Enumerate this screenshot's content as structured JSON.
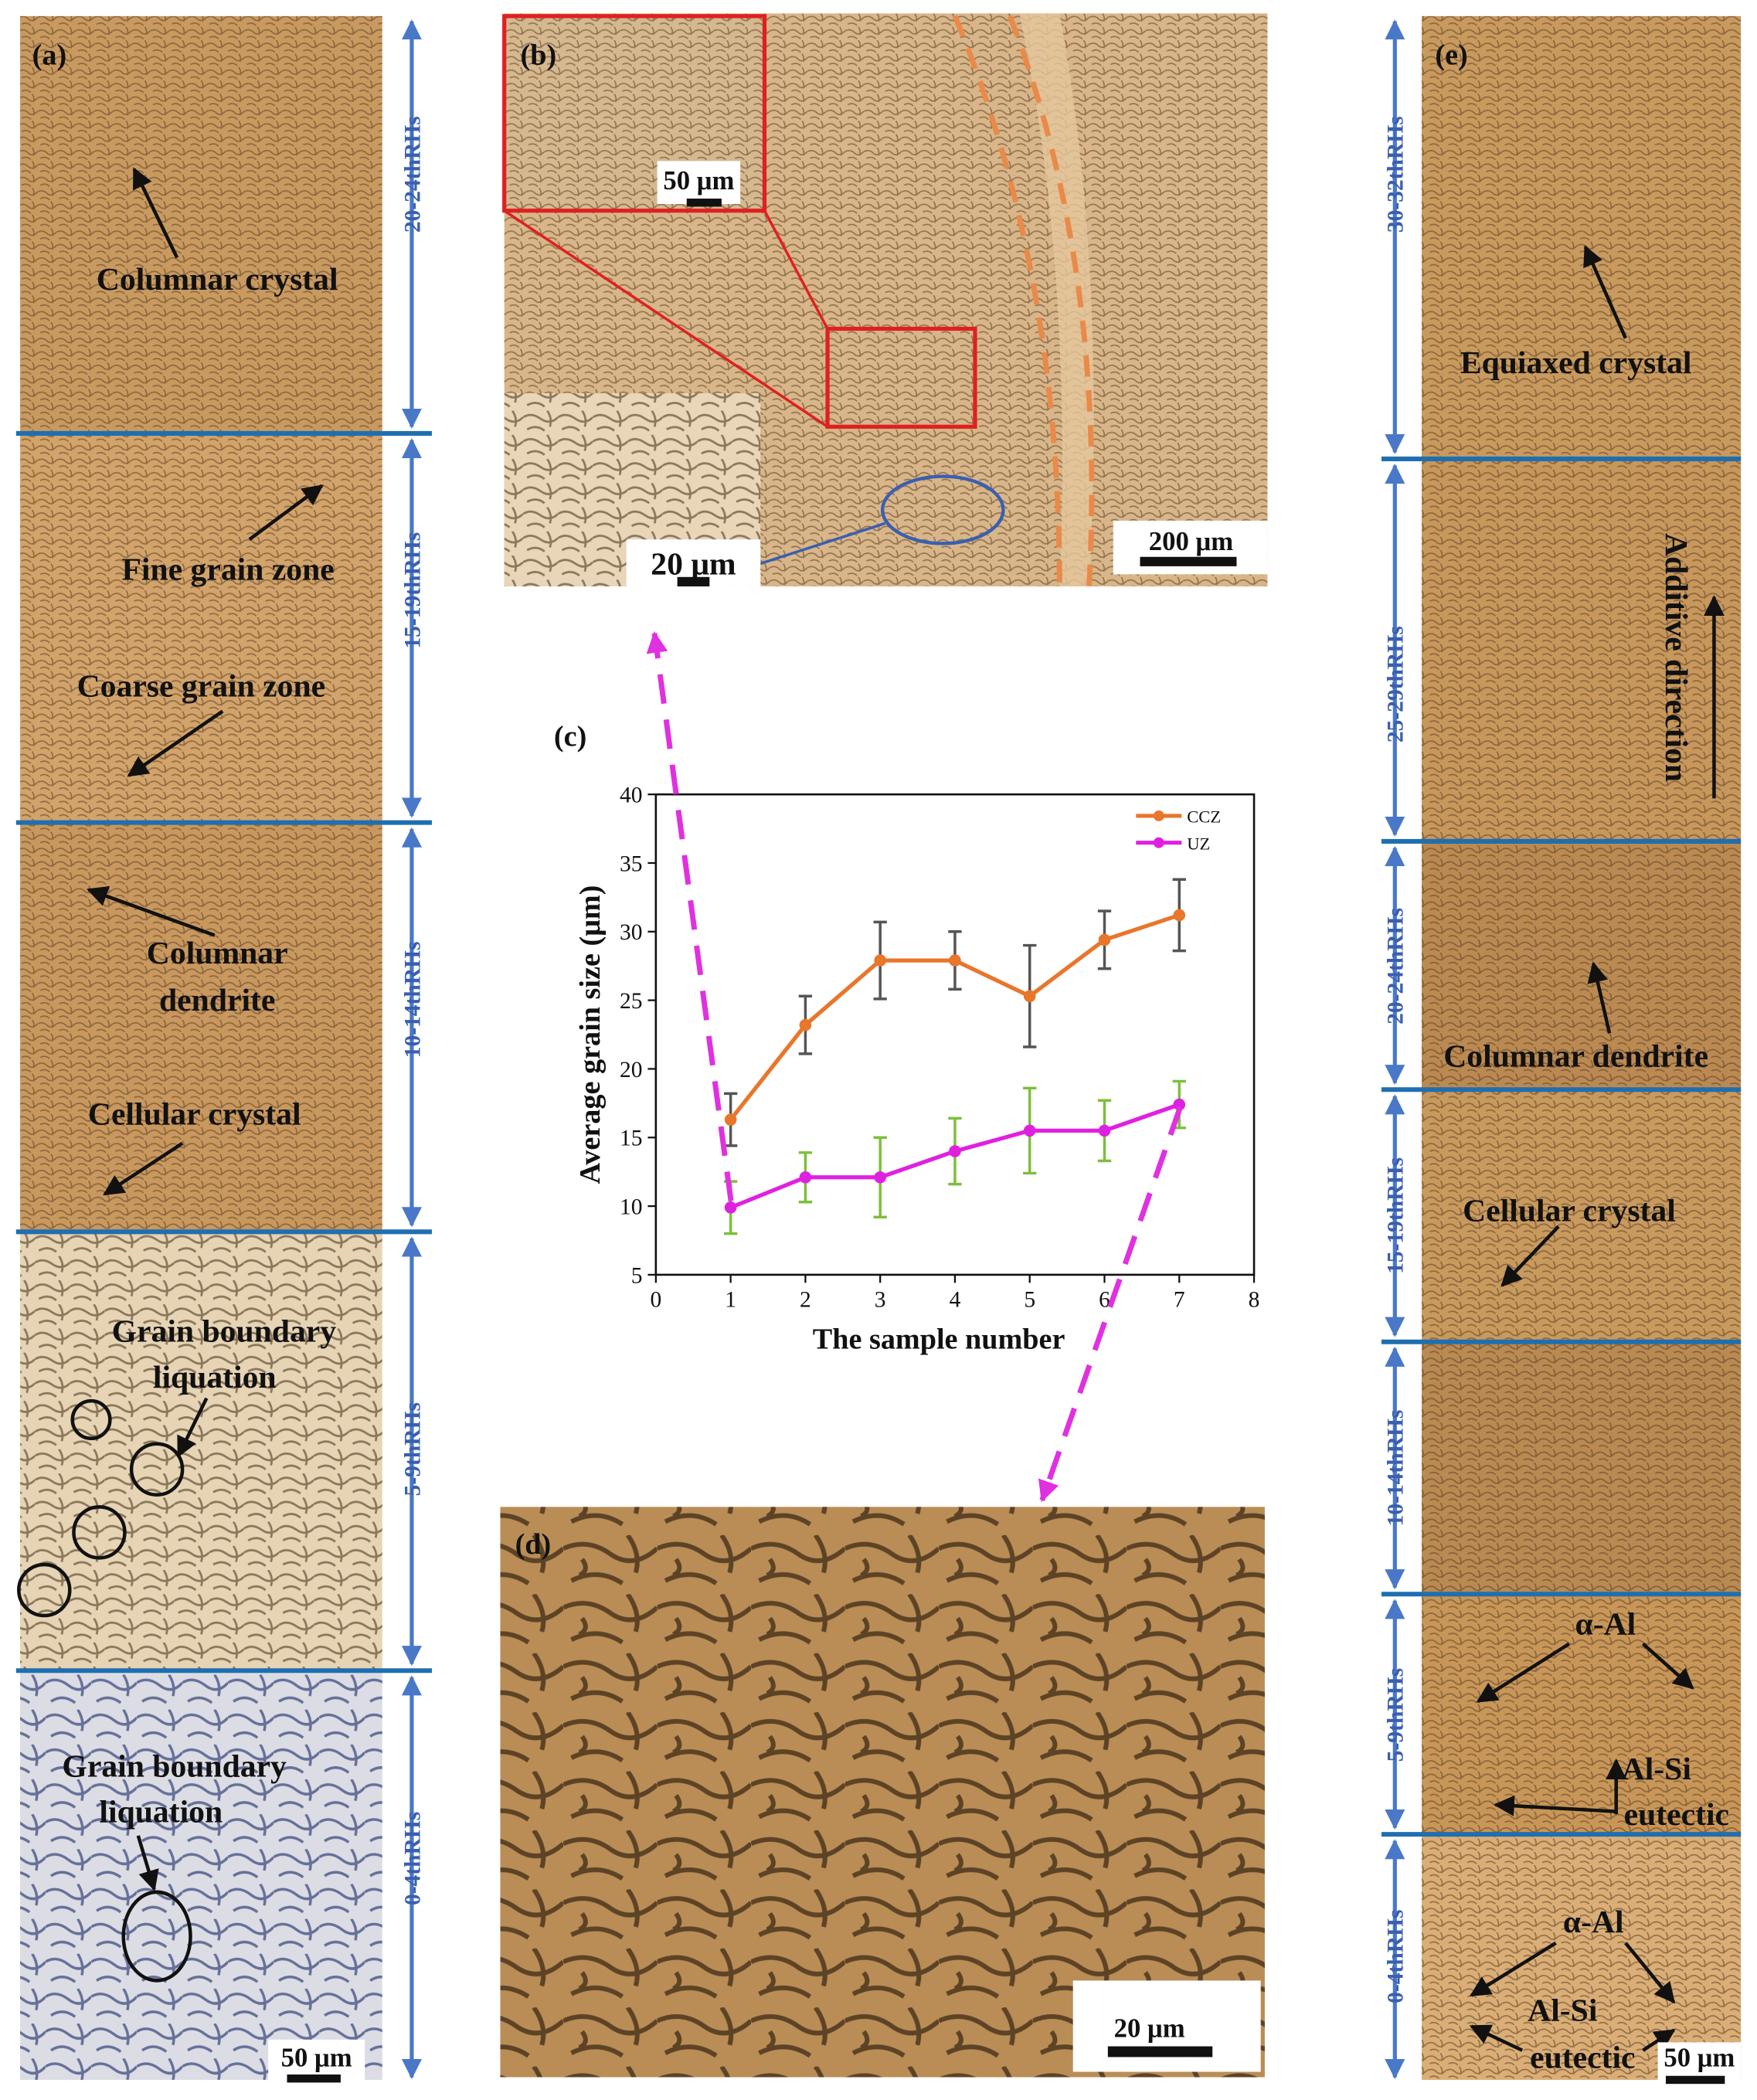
{
  "chart_data": {
    "type": "line",
    "title": "(c)",
    "xlabel": "The sample number",
    "ylabel": "Average grain size (μm)",
    "x": [
      1,
      2,
      3,
      4,
      5,
      6,
      7
    ],
    "series": [
      {
        "name": "CCZ",
        "color": "#e8762b",
        "error_color": "#555555",
        "values": [
          16.3,
          23.2,
          27.9,
          27.9,
          25.3,
          29.4,
          31.2
        ],
        "errors": [
          1.9,
          2.1,
          2.8,
          2.1,
          3.7,
          2.1,
          2.6
        ]
      },
      {
        "name": "UZ",
        "color": "#e020e0",
        "error_color": "#7cbf3b",
        "values": [
          9.9,
          12.1,
          12.1,
          14.0,
          15.5,
          15.5,
          17.4
        ],
        "errors": [
          1.9,
          1.8,
          2.9,
          2.4,
          3.1,
          2.2,
          1.7
        ]
      }
    ],
    "xlim": [
      0,
      8
    ],
    "xticks": [
      0,
      1,
      2,
      3,
      4,
      5,
      6,
      7,
      8
    ],
    "ylim": [
      5,
      40
    ],
    "yticks": [
      5,
      10,
      15,
      20,
      25,
      30,
      35,
      40
    ],
    "legend": "top-right",
    "grid": false
  },
  "panels": {
    "a": {
      "label": "(a)",
      "zones": [
        "20-24thRHs",
        "15-19thRHs",
        "10-14thRHs",
        "5-9thRHs",
        "0-4thRHs"
      ],
      "annotations": [
        "Columnar crystal",
        "Fine grain zone",
        "Coarse grain zone",
        "Columnar",
        "dendrite",
        "Cellular crystal",
        "Grain boundary",
        "liquation",
        "Grain boundary",
        "liquation"
      ],
      "scale_bar": "50 μm"
    },
    "b": {
      "label": "(b)",
      "scale_bars": [
        "50 μm",
        "20 μm",
        "200 μm"
      ]
    },
    "d": {
      "label": "(d)",
      "scale_bar": "20 μm"
    },
    "e": {
      "label": "(e)",
      "zones": [
        "30-32thRHs",
        "25-29thRHs",
        "20-24thRHs",
        "15-19thRHs",
        "10-14thRHs",
        "5-9thRHs",
        "0-4thRHs"
      ],
      "annotations": [
        "Equiaxed crystal",
        "Additive direction",
        "Columnar dendrite",
        "Cellular crystal",
        "α-Al",
        "Al-Si",
        "eutectic",
        "α-Al",
        "Al-Si",
        "eutectic"
      ],
      "scale_bar": "50 μm"
    }
  }
}
